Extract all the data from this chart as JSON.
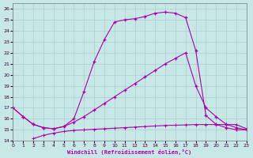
{
  "xlabel": "Windchill (Refroidissement éolien,°C)",
  "background_color": "#c8e8e8",
  "grid_color": "#aacece",
  "line_color": "#aa00aa",
  "xlim": [
    0,
    23
  ],
  "ylim": [
    14,
    26.5
  ],
  "yticks": [
    14,
    15,
    16,
    17,
    18,
    19,
    20,
    21,
    22,
    23,
    24,
    25,
    26
  ],
  "xticks": [
    0,
    1,
    2,
    3,
    4,
    5,
    6,
    7,
    8,
    9,
    10,
    11,
    12,
    13,
    14,
    15,
    16,
    17,
    18,
    19,
    20,
    21,
    22,
    23
  ],
  "line1_x": [
    0,
    1,
    2,
    3,
    4,
    5,
    6,
    7,
    8,
    9,
    10,
    11,
    12,
    13,
    14,
    15,
    16,
    17,
    18,
    19,
    20,
    21,
    22,
    23
  ],
  "line1_y": [
    17.0,
    16.2,
    15.5,
    15.2,
    15.1,
    15.3,
    16.0,
    18.5,
    21.2,
    23.2,
    24.8,
    25.0,
    25.1,
    25.3,
    25.6,
    25.7,
    25.6,
    25.2,
    22.2,
    16.3,
    15.5,
    15.2,
    15.0,
    15.0
  ],
  "line2_x": [
    0,
    1,
    2,
    3,
    4,
    5,
    6,
    7,
    8,
    9,
    10,
    11,
    12,
    13,
    14,
    15,
    16,
    17,
    18,
    19,
    20,
    21,
    22,
    23
  ],
  "line2_y": [
    17.0,
    16.2,
    15.5,
    15.2,
    15.1,
    15.3,
    15.7,
    16.2,
    16.8,
    17.4,
    18.0,
    18.6,
    19.2,
    19.8,
    20.4,
    21.0,
    21.5,
    22.0,
    19.0,
    17.0,
    16.2,
    15.5,
    15.2,
    15.0
  ],
  "line3_x": [
    2,
    3,
    4,
    5,
    6,
    7,
    8,
    9,
    10,
    11,
    12,
    13,
    14,
    15,
    16,
    17,
    18,
    19,
    20,
    21,
    22,
    23
  ],
  "line3_y": [
    14.2,
    14.5,
    14.7,
    14.85,
    14.95,
    15.0,
    15.05,
    15.1,
    15.15,
    15.2,
    15.25,
    15.3,
    15.35,
    15.4,
    15.42,
    15.45,
    15.48,
    15.48,
    15.48,
    15.48,
    15.48,
    15.1
  ]
}
